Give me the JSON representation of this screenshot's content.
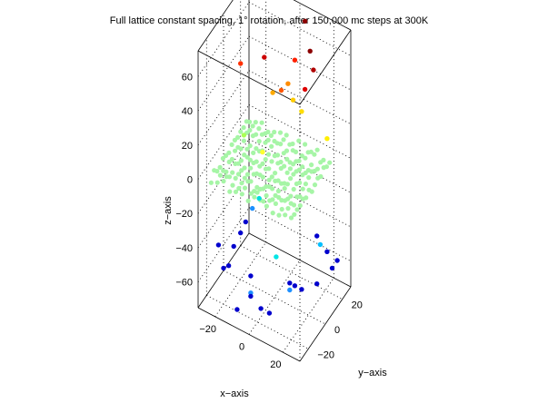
{
  "chart_data": {
    "type": "scatter",
    "projection": "3d",
    "title": "Full lattice constant spacing, 1° rotation, after 150,000 mc steps at 300K",
    "xlabel": "x−axis",
    "ylabel": "y−axis",
    "zlabel": "z−axis",
    "xlim": [
      -30,
      30
    ],
    "ylim": [
      -30,
      30
    ],
    "zlim": [
      -75,
      75
    ],
    "grid": true,
    "x_ticks": [
      {
        "v": -20,
        "label": "−20"
      },
      {
        "v": 0,
        "label": "0"
      },
      {
        "v": 20,
        "label": "20"
      }
    ],
    "y_ticks": [
      {
        "v": -20,
        "label": "−20"
      },
      {
        "v": 0,
        "label": "0"
      },
      {
        "v": 20,
        "label": "20"
      }
    ],
    "z_ticks": [
      {
        "v": -60,
        "label": "−60"
      },
      {
        "v": -40,
        "label": "−40"
      },
      {
        "v": -20,
        "label": "−20"
      },
      {
        "v": 0,
        "label": "0"
      },
      {
        "v": 20,
        "label": "20"
      },
      {
        "v": 40,
        "label": "40"
      },
      {
        "v": 60,
        "label": "60"
      }
    ],
    "lattice": {
      "color": "#a6f5a6",
      "lattice_constant": 3.6,
      "range": [
        -25,
        25
      ],
      "rotation_deg": 1,
      "z_jitter": 2.5
    },
    "points": [
      {
        "x": 6,
        "y": 24,
        "z": 72,
        "color": "#8b0000"
      },
      {
        "x": 10,
        "y": 22,
        "z": 58,
        "color": "#8b0000"
      },
      {
        "x": 14,
        "y": 18,
        "z": 52,
        "color": "#b00000"
      },
      {
        "x": -6,
        "y": 0,
        "z": 62,
        "color": "#cc0000"
      },
      {
        "x": 4,
        "y": 16,
        "z": 54,
        "color": "#ff2000"
      },
      {
        "x": 12,
        "y": 12,
        "z": 44,
        "color": "#dd0000"
      },
      {
        "x": -18,
        "y": -4,
        "z": 55,
        "color": "#ff3000"
      },
      {
        "x": 4,
        "y": 8,
        "z": 46,
        "color": "#ff8c00"
      },
      {
        "x": 2,
        "y": 4,
        "z": 44,
        "color": "#ff5500"
      },
      {
        "x": -2,
        "y": 2,
        "z": 42,
        "color": "#ffaa00"
      },
      {
        "x": 8,
        "y": 6,
        "z": 40,
        "color": "#ffcc00"
      },
      {
        "x": 10,
        "y": 12,
        "z": 30,
        "color": "#ffdd00"
      },
      {
        "x": 24,
        "y": 14,
        "z": 20,
        "color": "#ffee00"
      },
      {
        "x": -4,
        "y": -6,
        "z": 12,
        "color": "#ffff30"
      },
      {
        "x": -8,
        "y": -20,
        "z": 30,
        "color": "#aaff55"
      },
      {
        "x": 22,
        "y": 10,
        "z": -40,
        "color": "#00bfff"
      },
      {
        "x": -8,
        "y": -2,
        "z": -20,
        "color": "#00dddd"
      },
      {
        "x": 4,
        "y": -6,
        "z": -45,
        "color": "#00e5e5"
      },
      {
        "x": -10,
        "y": -6,
        "z": -24,
        "color": "#1e90ff"
      },
      {
        "x": -12,
        "y": -10,
        "z": -30,
        "color": "#0000cd"
      },
      {
        "x": -14,
        "y": -12,
        "z": -36,
        "color": "#0000cd"
      },
      {
        "x": -16,
        "y": -16,
        "z": -42,
        "color": "#0000cd"
      },
      {
        "x": -18,
        "y": -24,
        "z": -50,
        "color": "#0000cd"
      },
      {
        "x": -8,
        "y": -12,
        "z": -58,
        "color": "#0000cd"
      },
      {
        "x": -6,
        "y": -16,
        "z": -64,
        "color": "#1e90ff"
      },
      {
        "x": -4,
        "y": -20,
        "z": -62,
        "color": "#0000cd"
      },
      {
        "x": 0,
        "y": -16,
        "z": -70,
        "color": "#0000cd"
      },
      {
        "x": 2,
        "y": -10,
        "z": -76,
        "color": "#0000cd"
      },
      {
        "x": 10,
        "y": -2,
        "z": -60,
        "color": "#0000cd"
      },
      {
        "x": 12,
        "y": 0,
        "z": -62,
        "color": "#0000cd"
      },
      {
        "x": 14,
        "y": 4,
        "z": -66,
        "color": "#0000cd"
      },
      {
        "x": 6,
        "y": 6,
        "z": -72,
        "color": "#1e90ff"
      },
      {
        "x": 20,
        "y": 10,
        "z": -64,
        "color": "#0000cd"
      },
      {
        "x": 26,
        "y": 16,
        "z": -56,
        "color": "#0000cd"
      },
      {
        "x": 24,
        "y": 14,
        "z": -46,
        "color": "#0000cd"
      },
      {
        "x": 18,
        "y": 14,
        "z": -40,
        "color": "#0000cd"
      },
      {
        "x": 28,
        "y": 18,
        "z": -52,
        "color": "#0000cd"
      },
      {
        "x": -14,
        "y": -26,
        "z": -45,
        "color": "#0000cd"
      },
      {
        "x": -22,
        "y": -22,
        "z": -40,
        "color": "#0000cd"
      },
      {
        "x": -10,
        "y": -24,
        "z": -70,
        "color": "#0000cd"
      }
    ]
  }
}
